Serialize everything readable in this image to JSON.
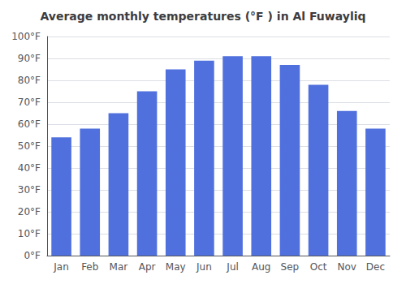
{
  "chart_data": {
    "type": "bar",
    "title": "Average monthly temperatures (°F ) in Al Fuwayliq",
    "categories": [
      "Jan",
      "Feb",
      "Mar",
      "Apr",
      "May",
      "Jun",
      "Jul",
      "Aug",
      "Sep",
      "Oct",
      "Nov",
      "Dec"
    ],
    "values": [
      54,
      58,
      65,
      75,
      85,
      89,
      91,
      91,
      87,
      78,
      66,
      58
    ],
    "ylim": [
      0,
      100
    ],
    "yticks": [
      {
        "value": 0,
        "label": "0°F"
      },
      {
        "value": 10,
        "label": "10°F"
      },
      {
        "value": 20,
        "label": "20°F"
      },
      {
        "value": 30,
        "label": "30°F"
      },
      {
        "value": 40,
        "label": "40°F"
      },
      {
        "value": 50,
        "label": "50°F"
      },
      {
        "value": 60,
        "label": "60°F"
      },
      {
        "value": 70,
        "label": "70°F"
      },
      {
        "value": 80,
        "label": "80°F"
      },
      {
        "value": 90,
        "label": "90°F"
      },
      {
        "value": 100,
        "label": "100°F"
      }
    ],
    "grid": true
  }
}
